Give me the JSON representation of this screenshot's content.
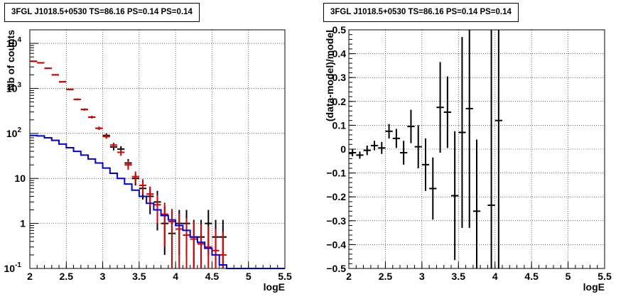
{
  "chart_data": [
    {
      "type": "scatter",
      "title": "3FGL J1018.5+0530 TS=86.16 PS=0.14 PS=0.14",
      "xlabel": "logE",
      "ylabel": "Nb of counts",
      "xlim": [
        2,
        5.5
      ],
      "ylim": [
        0.1,
        20000
      ],
      "yscale": "log",
      "grid": true,
      "x_ticks": [
        "2",
        "2.5",
        "3",
        "3.5",
        "4",
        "4.5",
        "5",
        "5.5"
      ],
      "y_ticks": [
        "10^-1",
        "1",
        "10",
        "10^2",
        "10^3",
        "10^4"
      ],
      "series": [
        {
          "color": "#000000",
          "style": "points_with_errors",
          "x": [
            2.05,
            2.15,
            2.25,
            2.35,
            2.45,
            2.55,
            2.65,
            2.75,
            2.85,
            2.95,
            3.05,
            3.15,
            3.25,
            3.35,
            3.45,
            3.55,
            3.65,
            3.75,
            3.85,
            3.95,
            4.05,
            4.15,
            4.25,
            4.35,
            4.45,
            4.55,
            4.65
          ],
          "y": [
            4000,
            3700,
            2800,
            2000,
            1400,
            950,
            570,
            340,
            230,
            130,
            90,
            50,
            45,
            22,
            10,
            6,
            4,
            3,
            1,
            0.6,
            1,
            1,
            0.5,
            0.5,
            1,
            0.5,
            0.5
          ],
          "yerr_up": [
            63,
            61,
            53,
            45,
            37,
            31,
            24,
            18,
            15,
            11,
            10,
            8,
            7,
            5,
            3,
            2.6,
            2.4,
            2.3,
            1.4,
            1.3,
            1,
            1,
            0.7,
            0.7,
            1,
            0.7,
            0.7
          ],
          "yerr_down": [
            63,
            61,
            53,
            45,
            37,
            31,
            24,
            18,
            15,
            11,
            10,
            8,
            7,
            5,
            3,
            2.6,
            2.4,
            2.3,
            0.8,
            0.4,
            0.8,
            0.8,
            0.4,
            0.4,
            0.8,
            0.4,
            0.4
          ]
        },
        {
          "color": "#dd0000",
          "style": "points_with_errors",
          "x": [
            2.05,
            2.15,
            2.25,
            2.35,
            2.45,
            2.55,
            2.65,
            2.75,
            2.85,
            2.95,
            3.05,
            3.15,
            3.25,
            3.35,
            3.45,
            3.55,
            3.65,
            3.75,
            3.85,
            3.95,
            4.05,
            4.15,
            4.25,
            4.35,
            4.45,
            4.55,
            4.65
          ],
          "y": [
            4000,
            3700,
            2800,
            2000,
            1400,
            950,
            570,
            340,
            230,
            130,
            85,
            55,
            38,
            20,
            11,
            7,
            4.5,
            2.6,
            1.6,
            1.1,
            0.75,
            0.55,
            0.45,
            0.35,
            0.3,
            0.25,
            0.2
          ],
          "yerr_up": [
            63,
            61,
            53,
            45,
            37,
            31,
            24,
            18,
            15,
            11,
            9,
            7.4,
            6.2,
            4.5,
            3.3,
            2.6,
            2.1,
            1.6,
            1.3,
            1.0,
            0.9,
            0.75,
            0.67,
            0.6,
            0.55,
            0.5,
            0.45
          ],
          "yerr_down": [
            63,
            61,
            53,
            45,
            37,
            31,
            24,
            18,
            15,
            11,
            9,
            7.4,
            6.2,
            4.5,
            3.3,
            2.6,
            2.1,
            1.6,
            1.3,
            1.0,
            0.75,
            0.55,
            0.45,
            0.35,
            0.3,
            0.25,
            0.2
          ]
        },
        {
          "color": "#0000dd",
          "style": "histogram",
          "x": [
            2.05,
            2.15,
            2.25,
            2.35,
            2.45,
            2.55,
            2.65,
            2.75,
            2.85,
            2.95,
            3.05,
            3.15,
            3.25,
            3.35,
            3.45,
            3.55,
            3.65,
            3.75,
            3.85,
            3.95,
            4.05,
            4.15,
            4.25,
            4.35,
            4.45,
            4.55,
            4.65,
            4.75,
            4.85,
            4.95,
            5.05,
            5.15,
            5.25,
            5.35,
            5.45
          ],
          "y": [
            90,
            88,
            80,
            70,
            58,
            48,
            40,
            33,
            27,
            22,
            17,
            13,
            10,
            7.5,
            5.5,
            4,
            2.8,
            2,
            1.5,
            1.2,
            0.9,
            0.7,
            0.5,
            0.38,
            0.28,
            0.2,
            0.12,
            0.1,
            0.1,
            0.1,
            0.1,
            0.1,
            0.1,
            0.1,
            0.1
          ]
        }
      ]
    },
    {
      "type": "scatter",
      "title": "3FGL J1018.5+0530 TS=86.16 PS=0.14 PS=0.14",
      "xlabel": "logE",
      "ylabel": "(data-model)/model",
      "xlim": [
        2,
        5.5
      ],
      "ylim": [
        -0.5,
        0.5
      ],
      "grid": true,
      "x_ticks": [
        "2",
        "2.5",
        "3",
        "3.5",
        "4",
        "4.5",
        "5",
        "5.5"
      ],
      "y_ticks": [
        "−0.5",
        "−0.4",
        "−0.3",
        "−0.2",
        "−0.1",
        "0",
        "0.1",
        "0.2",
        "0.3",
        "0.4",
        "0.5"
      ],
      "series": [
        {
          "color": "#000000",
          "style": "points_with_errors",
          "x": [
            2.05,
            2.15,
            2.25,
            2.35,
            2.45,
            2.55,
            2.65,
            2.75,
            2.85,
            2.95,
            3.05,
            3.15,
            3.25,
            3.35,
            3.45,
            3.55,
            3.65,
            3.75,
            3.95,
            4.05
          ],
          "y": [
            -0.015,
            -0.025,
            -0.005,
            0.015,
            0.005,
            0.075,
            0.045,
            -0.015,
            0.095,
            0.01,
            -0.065,
            -0.165,
            0.175,
            0.155,
            -0.195,
            0.07,
            0.17,
            -0.26,
            -0.235,
            0.12
          ],
          "yerr": [
            0.015,
            0.015,
            0.02,
            0.02,
            0.025,
            0.03,
            0.04,
            0.05,
            0.07,
            0.09,
            0.11,
            0.13,
            0.19,
            0.15,
            0.27,
            0.4,
            0.5,
            0.3,
            1.0,
            1.0
          ]
        }
      ]
    }
  ]
}
